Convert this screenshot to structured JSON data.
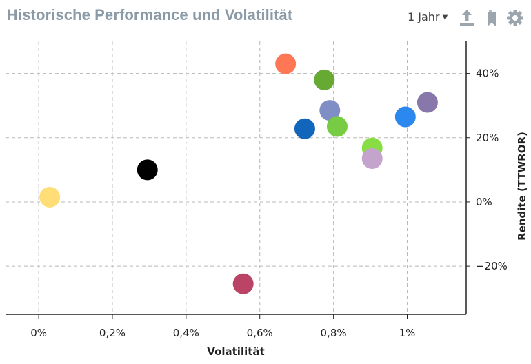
{
  "header": {
    "title": "Historische Performance und Volatilität",
    "period_label": "1 Jahr",
    "tools": [
      "export-icon",
      "bookmark-icon",
      "gear-icon"
    ]
  },
  "chart_data": {
    "type": "scatter",
    "title": "",
    "xlabel": "Volatilität",
    "ylabel": "Rendite (TTWROR)",
    "xlim": [
      -0.09,
      1.16
    ],
    "ylim": [
      -35,
      50
    ],
    "x_ticks": [
      0,
      0.2,
      0.4,
      0.6,
      0.8,
      1.0
    ],
    "x_tick_labels": [
      "0%",
      "0,2%",
      "0,4%",
      "0,6%",
      "0,8%",
      "1%"
    ],
    "y_ticks": [
      40,
      20,
      0,
      -20
    ],
    "y_tick_labels": [
      "40%",
      "20%",
      "0%",
      "−20%"
    ],
    "grid": true,
    "y_axis_position": "right",
    "points": [
      {
        "x": 0.03,
        "y": 1.5,
        "color": "#FFDD77"
      },
      {
        "x": 0.295,
        "y": 10,
        "color": "#000000"
      },
      {
        "x": 0.555,
        "y": -25.5,
        "color": "#BB4466"
      },
      {
        "x": 0.67,
        "y": 43,
        "color": "#FF7755"
      },
      {
        "x": 0.722,
        "y": 22.8,
        "color": "#1166BB"
      },
      {
        "x": 0.775,
        "y": 38,
        "color": "#66AA33"
      },
      {
        "x": 0.79,
        "y": 28.5,
        "color": "#7F8FC6"
      },
      {
        "x": 0.81,
        "y": 23.5,
        "color": "#77CC44"
      },
      {
        "x": 0.905,
        "y": 16.8,
        "color": "#88DD44"
      },
      {
        "x": 0.905,
        "y": 13.5,
        "color": "#C4A4CC"
      },
      {
        "x": 0.995,
        "y": 26.5,
        "color": "#2A88EE"
      },
      {
        "x": 1.055,
        "y": 31,
        "color": "#8877AA"
      }
    ]
  }
}
